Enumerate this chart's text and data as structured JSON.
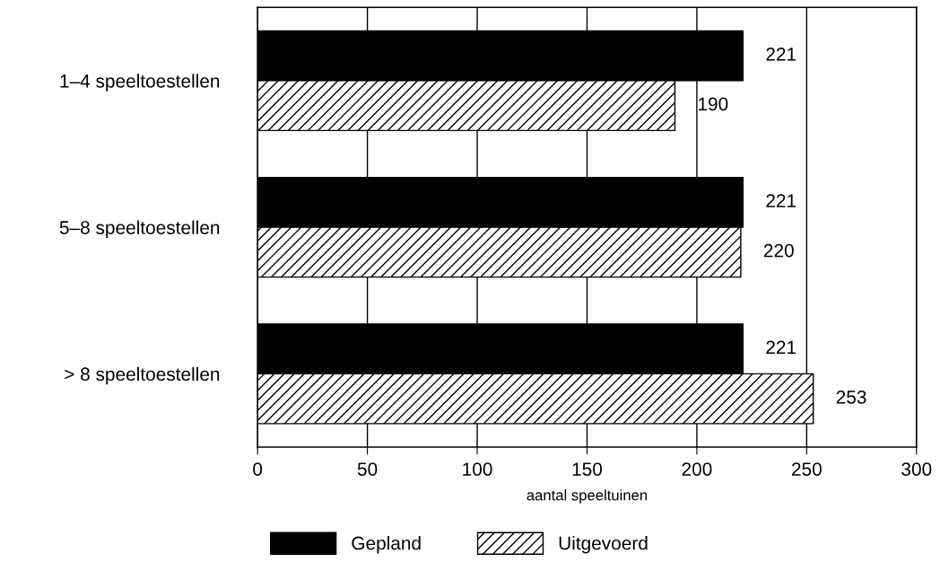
{
  "chart_data": {
    "type": "bar",
    "orientation": "horizontal",
    "xlabel": "aantal speeltuinen",
    "categories": [
      "1–4 speeltoestellen",
      "5–8 speeltoestellen",
      "> 8 speeltoestellen"
    ],
    "series": [
      {
        "name": "Gepland",
        "color": "#000000",
        "values": [
          221,
          221,
          221
        ]
      },
      {
        "name": "Uitgevoerd",
        "color": "#000000",
        "values": [
          190,
          220,
          253
        ]
      }
    ],
    "xlim": [
      0,
      300
    ],
    "xticks": [
      0,
      50,
      100,
      150,
      200,
      250,
      300
    ],
    "grid": "x",
    "legend": "bottom",
    "data_labels": true
  }
}
